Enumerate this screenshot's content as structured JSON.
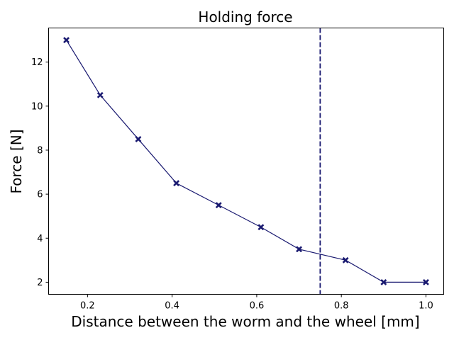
{
  "chart_data": {
    "type": "line",
    "title": "Holding force",
    "xlabel": "Distance between the worm and the wheel [mm]",
    "ylabel": "Force [N]",
    "xlim": [
      0.108,
      1.042
    ],
    "ylim": [
      1.45,
      13.55
    ],
    "xticks": [
      0.2,
      0.4,
      0.6,
      0.8,
      1.0
    ],
    "xtick_labels": [
      "0.2",
      "0.4",
      "0.6",
      "0.8",
      "1.0"
    ],
    "yticks": [
      2,
      4,
      6,
      8,
      10,
      12
    ],
    "ytick_labels": [
      "2",
      "4",
      "6",
      "8",
      "10",
      "12"
    ],
    "grid": false,
    "marker": "X",
    "color": "#191970",
    "series": [
      {
        "x": [
          0.15,
          0.23,
          0.32,
          0.41,
          0.51,
          0.61,
          0.7,
          0.81,
          0.9,
          1.0
        ],
        "y": [
          13.0,
          10.5,
          8.5,
          6.5,
          5.5,
          4.5,
          3.5,
          3.0,
          2.0,
          2.0
        ]
      }
    ],
    "vline": {
      "x": 0.75,
      "style": "dashed",
      "color": "#191970"
    }
  }
}
